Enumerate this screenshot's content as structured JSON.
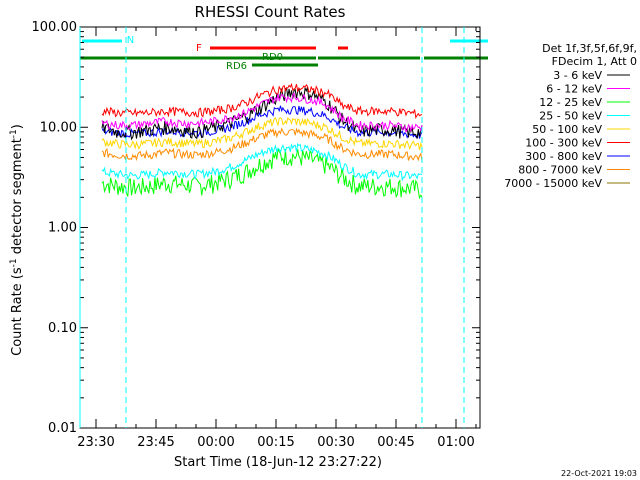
{
  "chart_data": {
    "type": "line",
    "title": "RHESSI Count Rates",
    "xlabel": "Start Time (18-Jun-12 23:27:22)",
    "ylabel": "Count Rate (s⁻¹ detector segment⁻¹)",
    "ylabel_main": "Count Rate (s",
    "ylabel_mid": " detector segment",
    "ylabel_end": ")",
    "ylabel_sup": "-1",
    "y_scale": "log",
    "ylim": [
      0.01,
      100
    ],
    "xlim_minutes": [
      -4,
      96
    ],
    "x_ticks": [
      {
        "label": "23:30",
        "m": 0
      },
      {
        "label": "23:45",
        "m": 15
      },
      {
        "label": "00:00",
        "m": 30
      },
      {
        "label": "00:15",
        "m": 45
      },
      {
        "label": "00:30",
        "m": 60
      },
      {
        "label": "00:45",
        "m": 75
      },
      {
        "label": "01:00",
        "m": 90
      }
    ],
    "y_ticks": [
      {
        "label": "0.01",
        "v": 0.01
      },
      {
        "label": "0.10",
        "v": 0.1
      },
      {
        "label": "1.00",
        "v": 1
      },
      {
        "label": "10.00",
        "v": 10
      },
      {
        "label": "100.00",
        "v": 100
      }
    ],
    "legend_header": [
      "Det 1f,3f,5f,6f,9f,",
      "FDecim 1, Att 0"
    ],
    "legend_placement": "right",
    "series": [
      {
        "name": "3 - 6 keV",
        "color": "#000000",
        "values": [
          10,
          9,
          9,
          9.5,
          10,
          9.5,
          9,
          10,
          11,
          13,
          16,
          20,
          23,
          22,
          18,
          12,
          9,
          9.5,
          9.5,
          9,
          9
        ]
      },
      {
        "name": "6 - 12 keV",
        "color": "#ff00ff",
        "values": [
          11,
          10.5,
          10.5,
          11,
          11.5,
          11,
          11,
          11.5,
          12.5,
          14,
          17,
          20,
          20,
          19,
          17,
          12.5,
          10.5,
          10.5,
          10.5,
          10,
          10
        ]
      },
      {
        "name": "12 - 25 keV",
        "color": "#00ff00",
        "values": [
          2.8,
          2.6,
          2.5,
          2.6,
          2.8,
          2.7,
          2.6,
          2.8,
          3.1,
          3.6,
          4.4,
          5.2,
          5.2,
          4.8,
          4.2,
          3.2,
          2.6,
          2.6,
          2.6,
          2.5,
          2.4
        ]
      },
      {
        "name": "25 - 50 keV",
        "color": "#00ffff",
        "values": [
          3.6,
          3.4,
          3.3,
          3.4,
          3.6,
          3.5,
          3.4,
          3.6,
          4,
          4.7,
          5.6,
          6.3,
          6.3,
          6,
          5.4,
          4.2,
          3.4,
          3.4,
          3.4,
          3.3,
          3.2
        ]
      },
      {
        "name": "50 - 100 keV",
        "color": "#ffd700",
        "values": [
          7.2,
          6.8,
          6.7,
          6.9,
          7.2,
          7,
          6.8,
          7.2,
          7.8,
          9,
          10.5,
          11.5,
          11.5,
          11,
          10,
          8,
          6.9,
          6.9,
          6.9,
          6.7,
          6.5
        ]
      },
      {
        "name": "100 - 300 keV",
        "color": "#ff0000",
        "values": [
          14.5,
          14,
          13.8,
          14,
          14.5,
          14.2,
          14,
          14.5,
          15.5,
          17.5,
          21,
          24,
          25,
          24,
          22,
          16.5,
          14.5,
          14.5,
          14.5,
          14,
          13.5
        ]
      },
      {
        "name": "300 - 800 keV",
        "color": "#0000ff",
        "values": [
          9.2,
          8.8,
          8.6,
          8.8,
          9.2,
          9,
          8.8,
          9.2,
          10,
          11.5,
          13.5,
          15,
          15,
          14.5,
          13,
          10.2,
          8.9,
          8.9,
          8.9,
          8.6,
          8.3
        ]
      },
      {
        "name": "800 - 7000 keV",
        "color": "#ff8c00",
        "values": [
          5.6,
          5.3,
          5.2,
          5.3,
          5.6,
          5.4,
          5.3,
          5.6,
          6.1,
          7,
          8.2,
          9,
          9,
          8.6,
          7.8,
          6.2,
          5.4,
          5.4,
          5.4,
          5.2,
          5
        ]
      },
      {
        "name": "7000 - 15000 keV",
        "color": "#8b7500",
        "values": []
      }
    ],
    "x_minutes": [
      1.5,
      5.5,
      9.5,
      13.5,
      17.5,
      21.5,
      25.5,
      29.5,
      33.5,
      37.5,
      41.5,
      45.5,
      49.5,
      53.5,
      57.5,
      61.5,
      65.5,
      69.5,
      73.5,
      77.5,
      81.5
    ],
    "flags": [
      {
        "label": "N",
        "color": "#00ffff",
        "segments": [
          [
            -3.5,
            6.5
          ],
          [
            88.5,
            98
          ]
        ]
      },
      {
        "label": "F",
        "color": "#ff0000",
        "segments": [
          [
            28.5,
            55
          ],
          [
            60.5,
            63
          ]
        ]
      },
      {
        "label": "RD0",
        "color": "#008000",
        "segments": [
          [
            -4,
            55
          ],
          [
            55.5,
            81
          ],
          [
            82,
            98
          ]
        ]
      },
      {
        "label": "RD6",
        "color": "#008000",
        "segments": [
          [
            39,
            55.5
          ]
        ]
      }
    ],
    "saa_lines_minutes": [
      -4,
      7.5,
      81.5,
      92
    ]
  },
  "footer": {
    "date": "22-Oct-2021 19:03"
  }
}
